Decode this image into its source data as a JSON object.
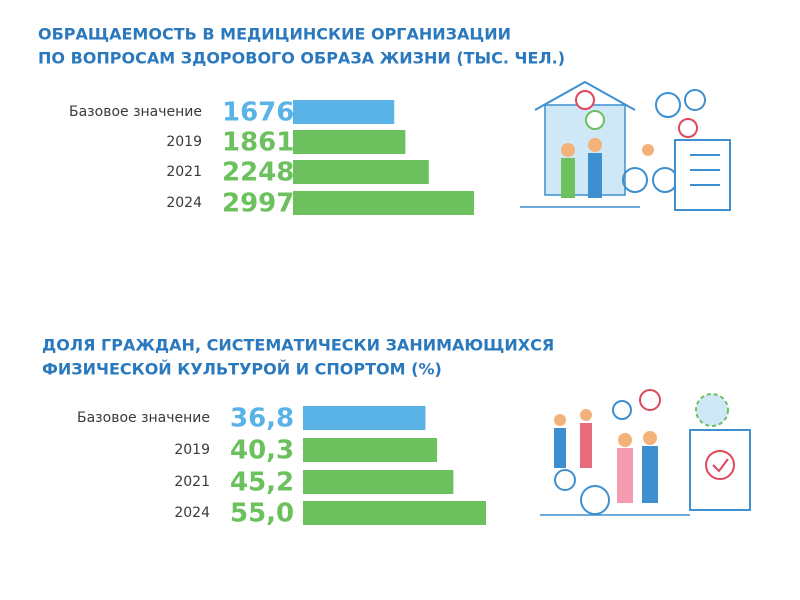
{
  "chart_data": [
    {
      "type": "bar",
      "orientation": "horizontal",
      "title": [
        "ОБРАЩАЕМОСТЬ В МЕДИЦИНСКИЕ ОРГАНИЗАЦИИ",
        "ПО ВОПРОСАМ ЗДОРОВОГО ОБРАЗА ЖИЗНИ (ТЫС. ЧЕЛ.)"
      ],
      "categories": [
        "Базовое значение",
        "2019",
        "2021",
        "2024"
      ],
      "values": [
        1676,
        1861,
        2248,
        2997
      ],
      "colors": [
        "#5ab3e6",
        "#6cc15e",
        "#6cc15e",
        "#6cc15e"
      ]
    },
    {
      "type": "bar",
      "orientation": "horizontal",
      "title": [
        "ДОЛЯ ГРАЖДАН, СИСТЕМАТИЧЕСКИ ЗАНИМАЮЩИХСЯ",
        "ФИЗИЧЕСКОЙ КУЛЬТУРОЙ И СПОРТОМ (%)"
      ],
      "categories": [
        "Базовое значение",
        "2019",
        "2021",
        "2024"
      ],
      "values": [
        36.8,
        40.3,
        45.2,
        55.0
      ],
      "value_labels": [
        "36,8",
        "40,3",
        "45,2",
        "55,0"
      ],
      "colors": [
        "#5ab3e6",
        "#6cc15e",
        "#6cc15e",
        "#6cc15e"
      ]
    }
  ]
}
